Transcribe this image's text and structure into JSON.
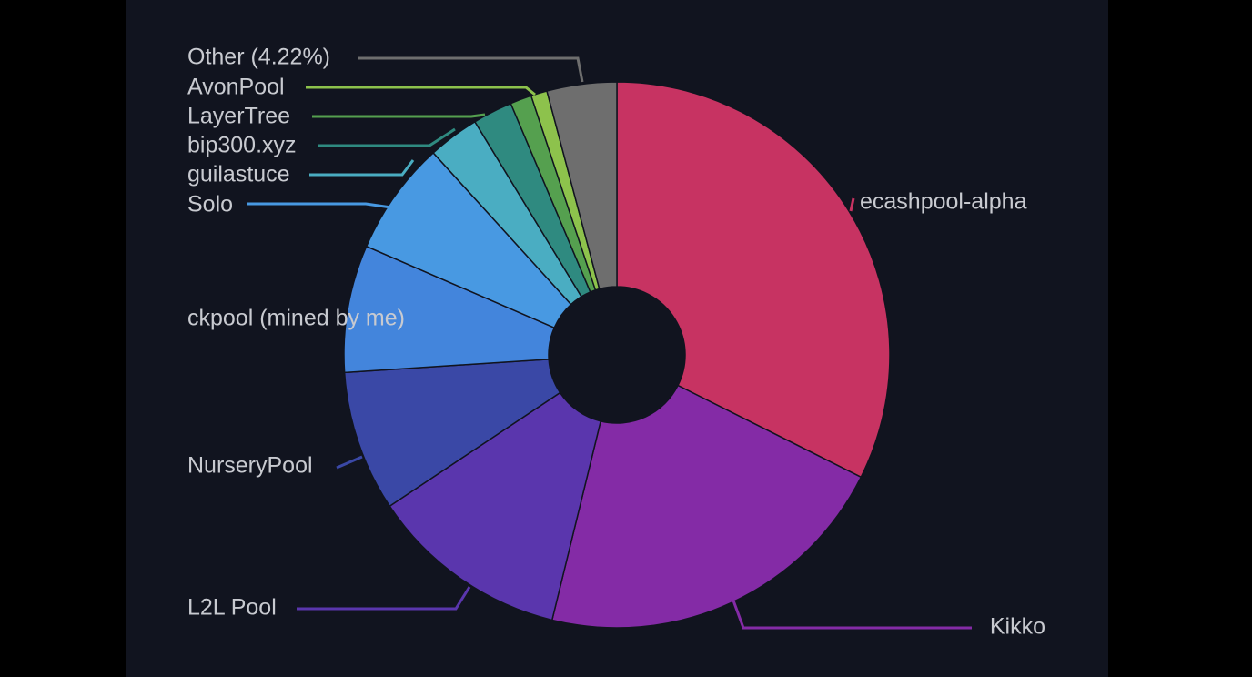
{
  "chart_data": {
    "type": "pie",
    "donut": true,
    "slices": [
      {
        "label": "ecashpool-alpha",
        "value": 33.1,
        "color": "#c73362"
      },
      {
        "label": "Kikko",
        "value": 21.9,
        "color": "#842ba6"
      },
      {
        "label": "L2L Pool",
        "value": 12.1,
        "color": "#5a36ad"
      },
      {
        "label": "NurseryPool",
        "value": 8.5,
        "color": "#3a48a6"
      },
      {
        "label": "ckpool (mined by me)",
        "value": 7.7,
        "color": "#4385dc"
      },
      {
        "label": "Solo",
        "value": 6.9,
        "color": "#4899e2"
      },
      {
        "label": "guilastuce",
        "value": 3.1,
        "color": "#4aadc2"
      },
      {
        "label": "bip300.xyz",
        "value": 2.4,
        "color": "#2f8a80"
      },
      {
        "label": "LayerTree",
        "value": 1.3,
        "color": "#55a04f"
      },
      {
        "label": "AvonPool",
        "value": 0.98,
        "color": "#8dc24c"
      },
      {
        "label": "Other (4.22%)",
        "value": 4.22,
        "color": "#6e6e6e"
      }
    ]
  }
}
